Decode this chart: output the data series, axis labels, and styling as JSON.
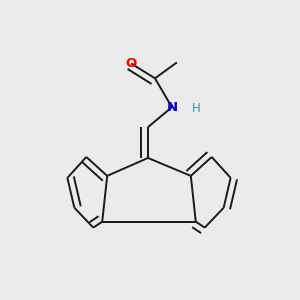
{
  "bg_color": "#ebebeb",
  "bond_color": "#1a1a1a",
  "atom_colors": {
    "O": "#ff0000",
    "N": "#0000cc",
    "H": "#339999",
    "C": "#1a1a1a"
  },
  "figsize": [
    3.0,
    3.0
  ],
  "dpi": 100,
  "lw": 1.4,
  "double_sep": 0.022
}
